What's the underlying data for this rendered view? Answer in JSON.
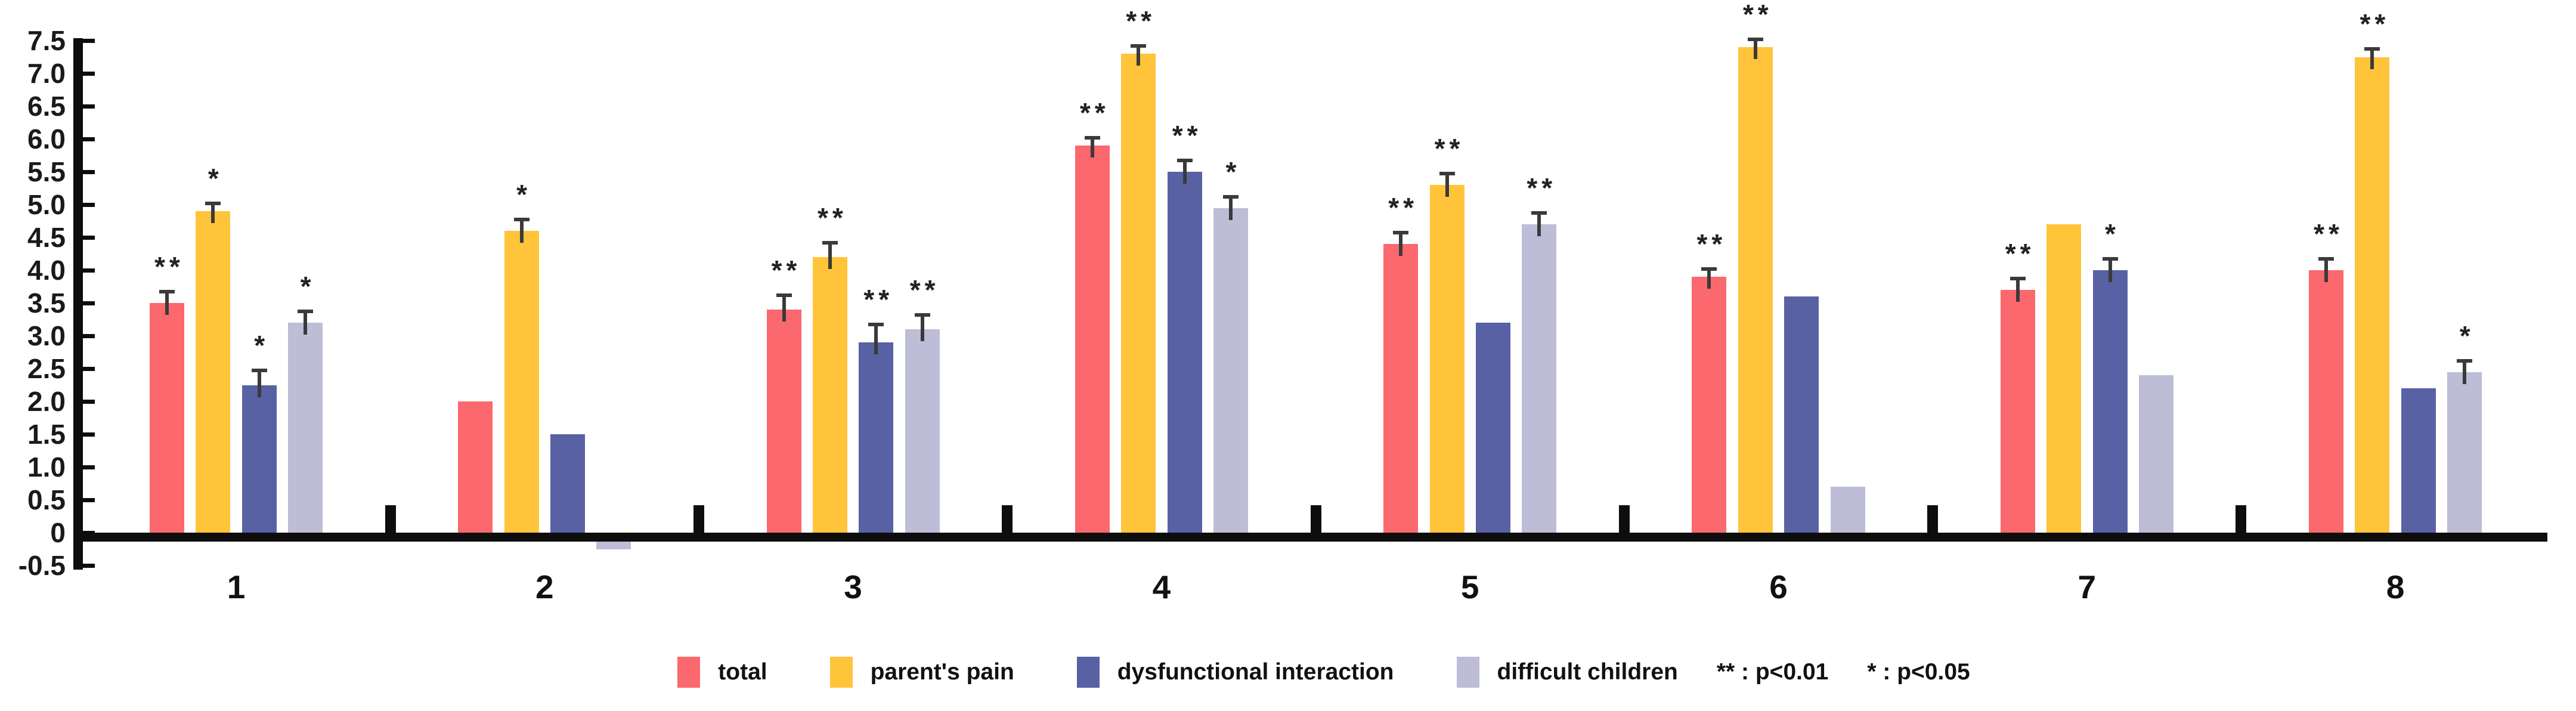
{
  "chart_data": {
    "type": "bar",
    "title": "",
    "xlabel": "",
    "ylabel": "",
    "categories": [
      "1",
      "2",
      "3",
      "4",
      "5",
      "6",
      "7",
      "8"
    ],
    "series": [
      {
        "name": "total",
        "color": "#FB686D",
        "values": [
          3.5,
          2.0,
          3.4,
          5.9,
          4.4,
          3.9,
          3.7,
          4.0
        ],
        "errors": [
          0.2,
          null,
          0.25,
          0.15,
          0.2,
          0.15,
          0.2,
          0.2
        ],
        "sig": [
          "**",
          null,
          "**",
          "**",
          "**",
          "**",
          "**",
          "**"
        ]
      },
      {
        "name": "parent's pain",
        "color": "#FFC43A",
        "values": [
          4.9,
          4.6,
          4.2,
          7.3,
          5.3,
          7.4,
          4.7,
          7.25
        ],
        "errors": [
          0.15,
          0.2,
          0.25,
          0.15,
          0.2,
          0.15,
          null,
          0.15
        ],
        "sig": [
          "*",
          "*",
          "**",
          "**",
          "**",
          "**",
          null,
          "**"
        ]
      },
      {
        "name": "dysfunctional interaction",
        "color": "#5861A3",
        "values": [
          2.25,
          1.5,
          2.9,
          5.5,
          3.2,
          3.6,
          4.0,
          2.2
        ],
        "errors": [
          0.25,
          null,
          0.3,
          0.2,
          null,
          null,
          0.2,
          null
        ],
        "sig": [
          "*",
          null,
          "**",
          "**",
          null,
          null,
          "*",
          null
        ]
      },
      {
        "name": "difficult children",
        "color": "#BDBDD8",
        "values": [
          3.2,
          -0.25,
          3.1,
          4.95,
          4.7,
          0.7,
          2.4,
          2.45
        ],
        "errors": [
          0.2,
          null,
          0.25,
          0.2,
          0.2,
          null,
          null,
          0.2
        ],
        "sig": [
          "*",
          null,
          "**",
          "*",
          "**",
          null,
          null,
          "*"
        ]
      }
    ],
    "ylim": [
      -0.5,
      7.5
    ],
    "ytick_labels": [
      "-0.5",
      "0",
      "0.5",
      "1.0",
      "1.5",
      "2.0",
      "2.5",
      "3.0",
      "3.5",
      "4.0",
      "4.5",
      "5.0",
      "5.5",
      "6.0",
      "6.5",
      "7.0",
      "7.5"
    ],
    "grid": "off",
    "legend_position": "bottom-center",
    "error_bars": "upper, shown only on starred/selected bars",
    "significance_notes": [
      "** : p<0.01",
      "* : p<0.05"
    ]
  }
}
